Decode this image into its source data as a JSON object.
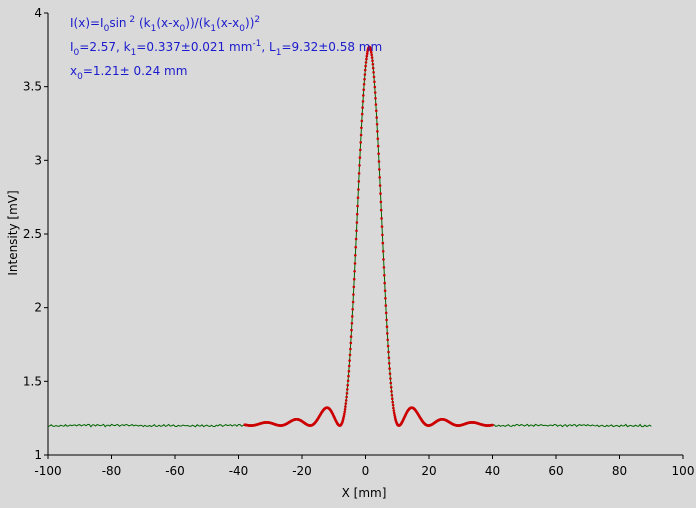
{
  "chart_data": {
    "type": "scatter",
    "title": "",
    "xlabel": "X [mm]",
    "ylabel": "Intensity [mV]",
    "xlim": [
      -100,
      100
    ],
    "ylim": [
      1,
      4
    ],
    "grid": false,
    "x_ticks": [
      -100,
      -80,
      -60,
      -40,
      -20,
      0,
      20,
      40,
      60,
      80,
      100
    ],
    "y_ticks": [
      1,
      1.5,
      2,
      2.5,
      3,
      3.5,
      4
    ],
    "background_color": "#d9d9d9",
    "data_color": "#006400",
    "fit_color": "#cc0000",
    "annotation_color": "#1a1acc",
    "annotations": {
      "formula": "I(x)=I0sin 2 (k1(x-x0))/(k1(x-x0))2",
      "params": "I0=2.57, k1=0.337±0.021 mm-1, L1=9.32±0.58 mm",
      "x0": "x0=1.21± 0.24 mm"
    },
    "series": [
      {
        "name": "",
        "style": "line",
        "x_range": [
          -100,
          90
        ],
        "x": [
          -100,
          -90,
          -80,
          -70,
          -60,
          -50,
          -40,
          -36,
          -32,
          -28,
          -24,
          -20,
          -16,
          -12,
          -8,
          -4,
          -2,
          0,
          1,
          2,
          4,
          8,
          12,
          16,
          20,
          24,
          28,
          32,
          36,
          40,
          50,
          60,
          70,
          80,
          90
        ],
        "y": [
          1.2,
          1.2,
          1.2,
          1.2,
          1.2,
          1.2,
          1.2,
          1.2,
          1.22,
          1.2,
          1.23,
          1.24,
          1.21,
          1.3,
          1.2,
          2.45,
          3.4,
          3.74,
          3.76,
          3.72,
          2.9,
          1.25,
          1.22,
          1.32,
          1.21,
          1.24,
          1.21,
          1.22,
          1.2,
          1.2,
          1.2,
          1.2,
          1.2,
          1.2,
          1.2
        ]
      },
      {
        "name": "",
        "style": "fit",
        "x_range": [
          -38,
          40
        ],
        "amplitude": 2.57,
        "offset": 1.2,
        "k1": 0.337,
        "x0": 1.21
      }
    ]
  }
}
